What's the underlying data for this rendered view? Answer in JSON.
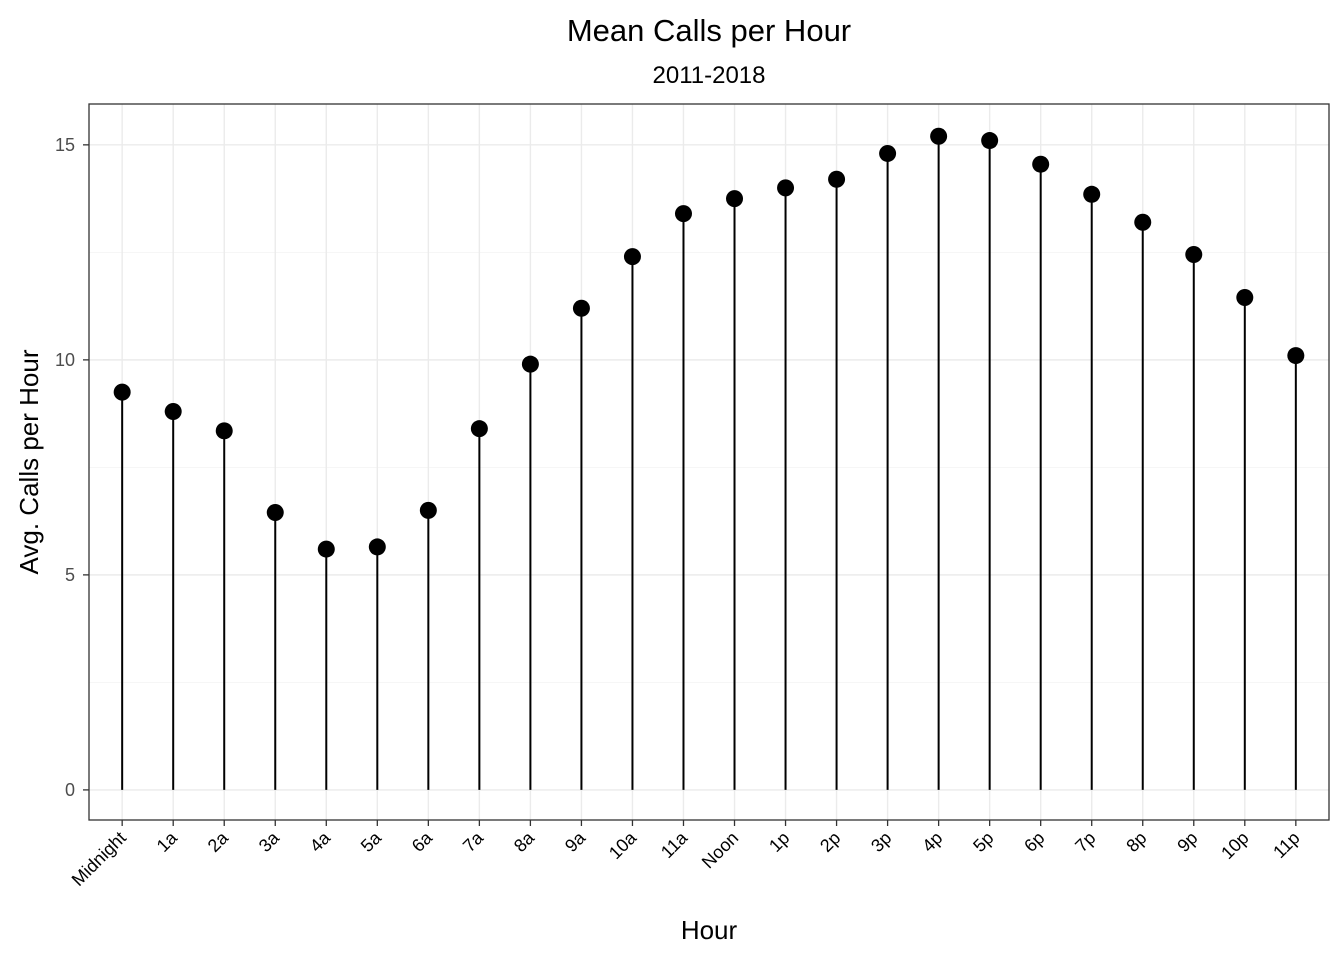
{
  "chart_data": {
    "type": "lollipop",
    "title": "Mean Calls per Hour",
    "subtitle": "2011-2018",
    "xlabel": "Hour",
    "ylabel": "Avg. Calls per Hour",
    "ylim": [
      -0.7,
      15.95
    ],
    "yticks": [
      0,
      5,
      10,
      15
    ],
    "grid": true,
    "categories": [
      "Midnight",
      "1a",
      "2a",
      "3a",
      "4a",
      "5a",
      "6a",
      "7a",
      "8a",
      "9a",
      "10a",
      "11a",
      "Noon",
      "1p",
      "2p",
      "3p",
      "4p",
      "5p",
      "6p",
      "7p",
      "8p",
      "9p",
      "10p",
      "11p"
    ],
    "values": [
      9.25,
      8.8,
      8.35,
      6.45,
      5.6,
      5.65,
      6.5,
      8.4,
      9.9,
      11.2,
      12.4,
      13.4,
      13.75,
      14.0,
      14.2,
      14.8,
      15.2,
      15.1,
      14.55,
      13.85,
      13.2,
      12.45,
      11.45,
      10.1
    ],
    "highlight_category": "Noon",
    "highlight_color": "#ff0000",
    "stem_color": "#000000",
    "point_color": "#000000"
  }
}
